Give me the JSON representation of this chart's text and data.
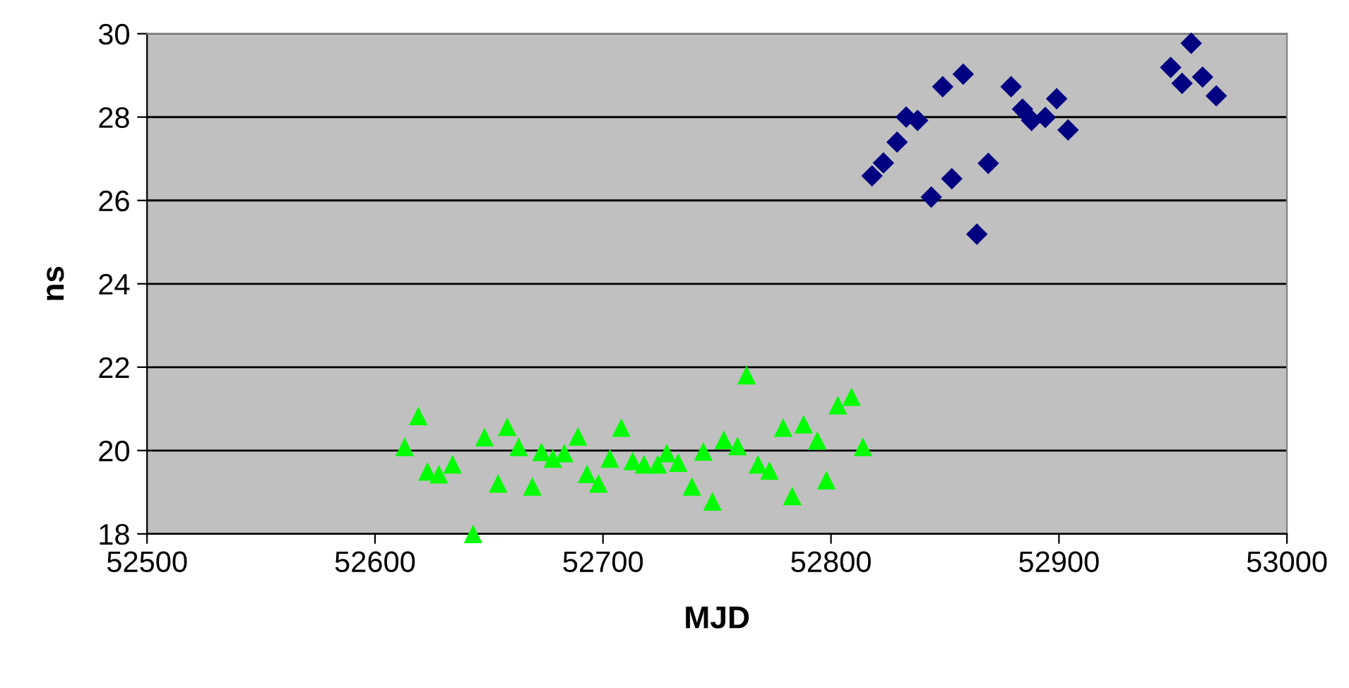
{
  "chart_data": {
    "type": "scatter",
    "xlabel": "MJD",
    "ylabel": "ns",
    "xlim": [
      52500,
      53000
    ],
    "xticks": [
      52500,
      52600,
      52700,
      52800,
      52900,
      53000
    ],
    "ylim": [
      18,
      30
    ],
    "yticks": [
      18,
      20,
      22,
      24,
      26,
      28,
      30
    ],
    "grid": "y",
    "series": [
      {
        "color": "#000080",
        "marker": "diamond",
        "x": [
          52818,
          52823,
          52829,
          52833,
          52838,
          52844,
          52849,
          52853,
          52858,
          52864,
          52869,
          52879,
          52884,
          52888,
          52894,
          52899,
          52904,
          52949,
          52954,
          52958,
          52963,
          52969
        ],
        "values": [
          26.59,
          26.9,
          27.4,
          28.0,
          27.92,
          26.08,
          28.73,
          26.52,
          29.03,
          25.19,
          26.89,
          28.73,
          28.19,
          27.92,
          27.99,
          28.44,
          27.69,
          29.19,
          28.81,
          29.77,
          28.96,
          28.51
        ]
      },
      {
        "color": "#00ff00",
        "marker": "triangle",
        "x": [
          52613,
          52619,
          52623,
          52628,
          52634,
          52643,
          52648,
          52654,
          52658,
          52663,
          52669,
          52673,
          52678,
          52683,
          52689,
          52693,
          52698,
          52703,
          52708,
          52713,
          52718,
          52724,
          52728,
          52733,
          52739,
          52744,
          52748,
          52753,
          52759,
          52763,
          52768,
          52773,
          52779,
          52783,
          52788,
          52794,
          52798,
          52803,
          52809,
          52814
        ],
        "values": [
          20.09,
          20.83,
          19.5,
          19.43,
          19.67,
          18.0,
          20.32,
          19.21,
          20.57,
          20.09,
          19.14,
          19.97,
          19.81,
          19.94,
          20.34,
          19.44,
          19.21,
          19.81,
          20.55,
          19.75,
          19.67,
          19.67,
          19.94,
          19.71,
          19.14,
          19.98,
          18.78,
          20.26,
          20.11,
          21.81,
          19.67,
          19.52,
          20.55,
          18.91,
          20.63,
          20.24,
          19.29,
          21.09,
          21.29,
          20.09
        ]
      }
    ]
  }
}
